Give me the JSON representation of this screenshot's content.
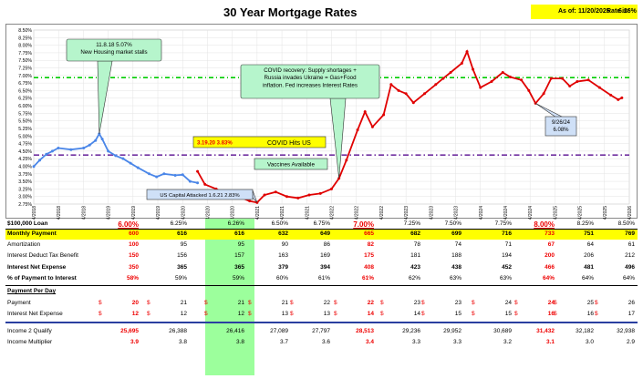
{
  "header": {
    "title": "30 Year Mortgage Rates",
    "asof_label": "As of:",
    "asof_date": "11/20/2025",
    "rate_label": "Rate is:",
    "rate_value": "6.26%"
  },
  "chart_data": {
    "type": "line",
    "y_ticks": [
      "2.75%",
      "3.00%",
      "3.25%",
      "3.50%",
      "3.75%",
      "4.00%",
      "4.25%",
      "4.50%",
      "4.75%",
      "5.00%",
      "5.25%",
      "5.50%",
      "5.75%",
      "6.00%",
      "6.25%",
      "6.50%",
      "6.75%",
      "7.00%",
      "7.25%",
      "7.50%",
      "7.75%",
      "8.00%",
      "8.25%",
      "8.50%"
    ],
    "ylim": [
      2.75,
      8.5
    ],
    "x_ticks": [
      "1/4/2018",
      "5/4/2018",
      "9/4/2018",
      "1/4/2019",
      "5/4/2019",
      "9/4/2019",
      "1/4/2020",
      "5/4/2020",
      "9/4/2020",
      "1/4/2021",
      "5/4/2021",
      "9/4/2021",
      "1/4/2022",
      "5/4/2022",
      "9/4/2022",
      "1/4/2023",
      "5/4/2023",
      "9/4/2023",
      "1/4/2024",
      "5/4/2024",
      "9/4/2024",
      "1/4/2025",
      "5/4/2025",
      "9/4/2025",
      "1/4/2026"
    ],
    "xlim": [
      2018.0,
      2026.0
    ],
    "series": [
      {
        "color": "#4a86e8",
        "points": [
          [
            2018.0,
            3.99
          ],
          [
            2018.08,
            4.2
          ],
          [
            2018.17,
            4.4
          ],
          [
            2018.25,
            4.5
          ],
          [
            2018.33,
            4.6
          ],
          [
            2018.5,
            4.55
          ],
          [
            2018.67,
            4.6
          ],
          [
            2018.75,
            4.7
          ],
          [
            2018.83,
            4.85
          ],
          [
            2018.88,
            5.07
          ],
          [
            2018.92,
            4.9
          ],
          [
            2019.0,
            4.5
          ],
          [
            2019.1,
            4.35
          ],
          [
            2019.2,
            4.25
          ],
          [
            2019.3,
            4.1
          ],
          [
            2019.4,
            3.95
          ],
          [
            2019.55,
            3.75
          ],
          [
            2019.65,
            3.65
          ],
          [
            2019.75,
            3.75
          ],
          [
            2019.9,
            3.7
          ],
          [
            2020.0,
            3.72
          ],
          [
            2020.1,
            3.5
          ],
          [
            2020.2,
            3.45
          ]
        ]
      },
      {
        "color": "#e00000",
        "points": [
          [
            2020.2,
            3.83
          ],
          [
            2020.3,
            3.4
          ],
          [
            2020.45,
            3.25
          ],
          [
            2020.6,
            3.05
          ],
          [
            2020.75,
            3.0
          ],
          [
            2020.9,
            2.85
          ],
          [
            2021.0,
            2.8
          ],
          [
            2021.1,
            3.05
          ],
          [
            2021.25,
            3.15
          ],
          [
            2021.4,
            3.0
          ],
          [
            2021.55,
            2.95
          ],
          [
            2021.7,
            3.05
          ],
          [
            2021.85,
            3.1
          ],
          [
            2022.0,
            3.25
          ],
          [
            2022.1,
            3.6
          ],
          [
            2022.2,
            4.2
          ],
          [
            2022.35,
            5.2
          ],
          [
            2022.45,
            5.8
          ],
          [
            2022.55,
            5.3
          ],
          [
            2022.7,
            5.7
          ],
          [
            2022.8,
            6.7
          ],
          [
            2022.9,
            6.5
          ],
          [
            2023.0,
            6.4
          ],
          [
            2023.1,
            6.1
          ],
          [
            2023.25,
            6.4
          ],
          [
            2023.4,
            6.7
          ],
          [
            2023.5,
            6.9
          ],
          [
            2023.6,
            7.1
          ],
          [
            2023.75,
            7.4
          ],
          [
            2023.82,
            7.79
          ],
          [
            2023.9,
            7.2
          ],
          [
            2024.0,
            6.6
          ],
          [
            2024.15,
            6.8
          ],
          [
            2024.3,
            7.1
          ],
          [
            2024.4,
            6.95
          ],
          [
            2024.55,
            6.85
          ],
          [
            2024.65,
            6.5
          ],
          [
            2024.74,
            6.08
          ],
          [
            2024.85,
            6.4
          ],
          [
            2024.95,
            6.9
          ],
          [
            2025.1,
            6.9
          ],
          [
            2025.2,
            6.65
          ],
          [
            2025.3,
            6.8
          ],
          [
            2025.45,
            6.85
          ],
          [
            2025.6,
            6.6
          ],
          [
            2025.75,
            6.35
          ],
          [
            2025.85,
            6.2
          ],
          [
            2025.9,
            6.26
          ]
        ]
      }
    ],
    "reference_lines": [
      {
        "label": "green-ref",
        "value": 6.93,
        "color": "#00cc00"
      },
      {
        "label": "purple-ref",
        "value": 4.37,
        "color": "#7030a0"
      }
    ],
    "annotations": {
      "peak_2018": [
        "11.8.18 5.07%",
        "New Housing market stalls"
      ],
      "covid_recovery": [
        "COVID recovery: Supply shortages +",
        "Russia invades Ukraine = Gas+Food",
        "inflation.  Fed increases Interest Rates"
      ],
      "covid_hits_date": "3.19.20  3.83%",
      "covid_hits_label": "COVID Hits US",
      "vaccines": "Vaccines Available",
      "capital": "US Capital Attacked 1.6.21 2.83%",
      "low_2024": [
        "9/26/24",
        "6.08%"
      ]
    }
  },
  "table": {
    "rows": [
      {
        "label": "$100,000 Loan",
        "cells": [
          "6.00%",
          "6.25%",
          "6.26%",
          "6.50%",
          "6.75%",
          "7.00%",
          "7.25%",
          "7.50%",
          "7.75%",
          "8.00%",
          "8.25%",
          "8.50%"
        ]
      },
      {
        "label": "Monthly Payment",
        "cells": [
          "600",
          "616",
          "616",
          "632",
          "649",
          "665",
          "682",
          "699",
          "716",
          "733",
          "751",
          "769"
        ]
      },
      {
        "label": "Amortization",
        "cells": [
          "100",
          "95",
          "95",
          "90",
          "86",
          "82",
          "78",
          "74",
          "71",
          "67",
          "64",
          "61"
        ]
      },
      {
        "label": "Interest Deduct Tax Benefit",
        "cells": [
          "150",
          "156",
          "157",
          "163",
          "169",
          "175",
          "181",
          "188",
          "194",
          "200",
          "206",
          "212"
        ]
      },
      {
        "label": "Interest Net Expense",
        "cells": [
          "350",
          "365",
          "365",
          "379",
          "394",
          "408",
          "423",
          "438",
          "452",
          "466",
          "481",
          "496"
        ]
      },
      {
        "label": "% of Payment to Interest",
        "cells": [
          "58%",
          "59%",
          "59%",
          "60%",
          "61%",
          "61%",
          "62%",
          "63%",
          "63%",
          "64%",
          "64%",
          "64%"
        ]
      },
      {
        "label": "Payment Per Day",
        "cells": []
      },
      {
        "label": "Payment",
        "cells": [
          "20",
          "21",
          "21",
          "21",
          "22",
          "22",
          "23",
          "23",
          "24",
          "24",
          "25",
          "26"
        ]
      },
      {
        "label": "Interest Net Expense",
        "cells": [
          "12",
          "12",
          "12",
          "13",
          "13",
          "14",
          "14",
          "15",
          "15",
          "16",
          "16",
          "17"
        ]
      },
      {
        "label": "Income 2 Qualify",
        "cells": [
          "25,695",
          "26,388",
          "26,416",
          "27,089",
          "27,797",
          "28,513",
          "29,236",
          "29,952",
          "30,689",
          "31,432",
          "32,182",
          "32,938"
        ]
      },
      {
        "label": "Income Multiplier",
        "cells": [
          "3.9",
          "3.8",
          "3.8",
          "3.7",
          "3.6",
          "3.4",
          "3.3",
          "3.3",
          "3.2",
          "3.1",
          "3.0",
          "2.9"
        ]
      }
    ],
    "dollar_sign": "$"
  }
}
